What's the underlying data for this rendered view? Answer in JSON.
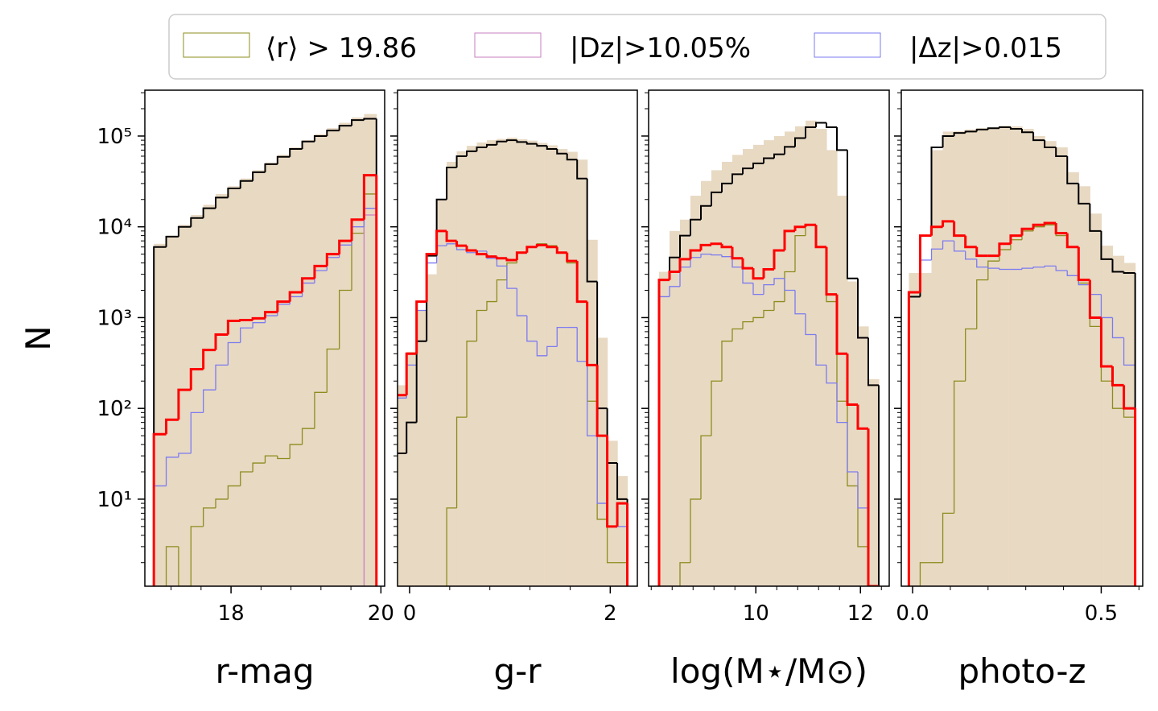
{
  "chart_data": {
    "type": "histogram",
    "ylabel": "N",
    "yscale": "log",
    "ylim": [
      1.1,
      320000
    ],
    "ytick_values": [
      10,
      100,
      1000,
      10000,
      100000
    ],
    "ytick_labels": [
      "10¹",
      "10²",
      "10³",
      "10⁴",
      "10⁵"
    ],
    "legend": [
      {
        "label": "⟨r⟩ > 19.86",
        "color": "#8c8c1e"
      },
      {
        "label": "|Dz|>10.05%",
        "color": "#c77fc0"
      },
      {
        "label": "|Δz|>0.015",
        "color": "#7b7bf0"
      }
    ],
    "colors": {
      "fill": "#e8d9c3",
      "total": "#000000",
      "subset": "#ff0000",
      "faint": "#8c8c1e",
      "dz": "#c77fc0",
      "deltaz": "#7b7bf0"
    },
    "panels": [
      {
        "xlabel": "r-mag",
        "xlim": [
          16.85,
          20.05
        ],
        "xticks": [
          18,
          20
        ],
        "xtick_labels": [
          "18",
          "20"
        ],
        "edges": [
          16.97,
          17.135,
          17.3,
          17.465,
          17.63,
          17.795,
          17.96,
          18.125,
          18.29,
          18.455,
          18.62,
          18.785,
          18.95,
          19.115,
          19.28,
          19.445,
          19.61,
          19.775,
          19.94
        ],
        "fill": [
          6500,
          8000,
          10500,
          13500,
          17500,
          23000,
          28000,
          34000,
          42000,
          51000,
          62000,
          75000,
          90000,
          105000,
          122000,
          140000,
          160000,
          175000
        ],
        "total": [
          6000,
          7800,
          10000,
          12500,
          16000,
          21000,
          26500,
          32000,
          40000,
          49000,
          59000,
          72000,
          87000,
          100000,
          115000,
          130000,
          150000,
          155000
        ],
        "subset": [
          52,
          75,
          160,
          270,
          440,
          650,
          920,
          940,
          980,
          1150,
          1500,
          1900,
          2700,
          3700,
          5000,
          7000,
          12000,
          37000
        ],
        "faint": [
          0,
          3,
          0,
          5,
          8,
          10,
          14,
          20,
          25,
          30,
          28,
          40,
          60,
          150,
          450,
          2000,
          8500,
          23000
        ],
        "dz": [
          0,
          0,
          0,
          0,
          0,
          0,
          0,
          0,
          0,
          0,
          0,
          0,
          0,
          0,
          0,
          0,
          0,
          13500
        ],
        "deltaz": [
          14,
          29,
          32,
          90,
          160,
          300,
          530,
          770,
          880,
          1050,
          1400,
          1700,
          2400,
          3300,
          4600,
          6300,
          10000,
          16000
        ]
      },
      {
        "xlabel": "g-r",
        "xlim": [
          -0.12,
          2.27
        ],
        "xticks": [
          0,
          2
        ],
        "xtick_labels": [
          "0",
          "2"
        ],
        "edges": [
          -0.13,
          -0.03,
          0.07,
          0.17,
          0.27,
          0.37,
          0.47,
          0.57,
          0.67,
          0.77,
          0.87,
          0.97,
          1.07,
          1.17,
          1.27,
          1.37,
          1.47,
          1.57,
          1.67,
          1.77,
          1.87,
          1.97,
          2.07,
          2.17
        ],
        "fill": [
          180,
          420,
          1200,
          3000,
          20000,
          52000,
          68000,
          78000,
          85000,
          90000,
          93000,
          96000,
          92000,
          89000,
          84000,
          79000,
          72000,
          67000,
          55000,
          7200,
          600,
          44,
          18
        ],
        "total": [
          32,
          70,
          550,
          4800,
          20000,
          45000,
          60000,
          68000,
          75000,
          80000,
          87000,
          90000,
          86000,
          82000,
          78000,
          72000,
          64000,
          55000,
          34000,
          2500,
          100,
          25,
          10
        ],
        "subset": [
          140,
          400,
          1500,
          5000,
          9000,
          7000,
          6200,
          5500,
          5000,
          4700,
          4500,
          4300,
          5200,
          6000,
          6300,
          6000,
          5200,
          4200,
          1500,
          300,
          50,
          5,
          9
        ],
        "faint": [
          0,
          0,
          0,
          0,
          0,
          8,
          80,
          550,
          1200,
          1500,
          2600,
          4000,
          5200,
          6000,
          6500,
          6200,
          5200,
          4000,
          1500,
          120,
          6,
          2,
          2
        ],
        "dz": [
          0,
          0,
          0,
          0,
          0,
          0,
          0,
          0,
          0,
          0,
          0,
          0,
          0,
          0,
          0,
          0,
          0,
          0,
          0,
          0,
          0,
          0,
          0
        ],
        "deltaz": [
          130,
          300,
          1200,
          4000,
          6200,
          6500,
          5600,
          5200,
          5400,
          4500,
          3700,
          2100,
          1050,
          550,
          380,
          480,
          780,
          780,
          330,
          50,
          9,
          5,
          5
        ]
      },
      {
        "xlabel": "log(M⋆/M⊙)",
        "xlim": [
          7.95,
          12.55
        ],
        "xticks": [
          10,
          12
        ],
        "xtick_labels": [
          "10",
          "12"
        ],
        "edges": [
          8.15,
          8.35,
          8.55,
          8.75,
          8.95,
          9.15,
          9.35,
          9.55,
          9.75,
          9.95,
          10.15,
          10.35,
          10.55,
          10.75,
          10.95,
          11.15,
          11.35,
          11.55,
          11.75,
          11.95,
          12.15,
          12.35
        ],
        "fill": [
          3200,
          9000,
          12000,
          22000,
          32000,
          42000,
          52000,
          62000,
          72000,
          80000,
          90000,
          100000,
          112000,
          128000,
          148000,
          120000,
          70000,
          22000,
          2500,
          800,
          210
        ],
        "total": [
          2600,
          4600,
          8000,
          12000,
          17000,
          24000,
          30000,
          38000,
          44000,
          50000,
          57000,
          63000,
          76000,
          95000,
          125000,
          140000,
          125000,
          70000,
          2700,
          600,
          180
        ],
        "subset": [
          2600,
          3200,
          4400,
          5500,
          6300,
          6500,
          6000,
          4500,
          3500,
          2700,
          3400,
          5500,
          9000,
          10000,
          10500,
          6000,
          1800,
          400,
          110,
          60,
          0
        ],
        "faint": [
          0,
          0,
          2,
          10,
          50,
          200,
          550,
          750,
          900,
          1000,
          1200,
          1500,
          3200,
          8000,
          10500,
          6000,
          1500,
          120,
          14,
          3,
          1
        ],
        "dz": [
          0,
          0,
          0,
          0,
          0,
          0,
          0,
          0,
          0,
          0,
          0,
          0,
          0,
          0,
          0,
          0,
          0,
          0,
          0,
          0,
          0
        ],
        "deltaz": [
          1700,
          2200,
          3600,
          4600,
          5000,
          4900,
          4700,
          3600,
          2400,
          1800,
          2300,
          2700,
          2000,
          1100,
          650,
          300,
          190,
          70,
          20,
          8,
          0
        ]
      },
      {
        "xlabel": "photo-z",
        "xlim": [
          -0.03,
          0.61
        ],
        "xticks": [
          0.0,
          0.5
        ],
        "xtick_labels": [
          "0.0",
          "0.5"
        ],
        "edges": [
          -0.01,
          0.02,
          0.05,
          0.08,
          0.11,
          0.14,
          0.17,
          0.2,
          0.23,
          0.26,
          0.29,
          0.32,
          0.35,
          0.38,
          0.41,
          0.44,
          0.47,
          0.5,
          0.53,
          0.56,
          0.59
        ],
        "fill": [
          3100,
          3100,
          70000,
          112000,
          113000,
          118000,
          122000,
          125000,
          130000,
          128000,
          120000,
          100000,
          88000,
          75000,
          40000,
          28000,
          14000,
          6200,
          4800,
          4000
        ],
        "total": [
          1700,
          8000,
          75000,
          100000,
          108000,
          112000,
          118000,
          122000,
          125000,
          120000,
          110000,
          90000,
          75000,
          60000,
          30000,
          18000,
          9000,
          4400,
          3200,
          3100
        ],
        "subset": [
          1900,
          8000,
          10000,
          11500,
          8000,
          6000,
          4800,
          4800,
          6500,
          8000,
          9500,
          10500,
          11000,
          8500,
          6000,
          2600,
          1000,
          290,
          180,
          100
        ],
        "faint": [
          0,
          2,
          2,
          7,
          200,
          750,
          2600,
          4200,
          5600,
          7200,
          9000,
          10000,
          10500,
          8000,
          6000,
          2400,
          800,
          200,
          100,
          80
        ],
        "dz": [
          0,
          0,
          0,
          0,
          0,
          0,
          0,
          0,
          0,
          0,
          0,
          0,
          0,
          0,
          0,
          0,
          0,
          0,
          0,
          0
        ],
        "deltaz": [
          1700,
          4300,
          5700,
          7000,
          5400,
          4400,
          3600,
          3500,
          3400,
          3400,
          3500,
          3600,
          3700,
          3300,
          2900,
          2300,
          1800,
          1000,
          600,
          300
        ]
      }
    ]
  }
}
